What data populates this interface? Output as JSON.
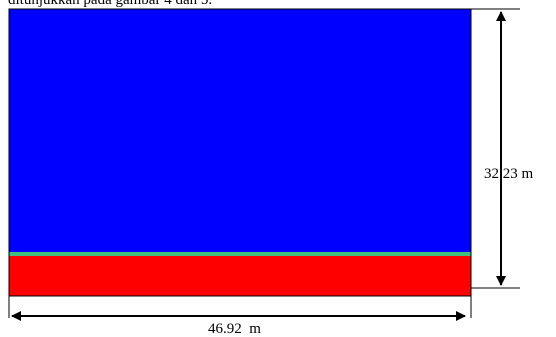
{
  "caption": "ditunjukkan pada gambar 4 dan 5.",
  "figure": {
    "height_label": "32.23 m",
    "width_label": "46.92  m",
    "layers": [
      {
        "name": "upper-region",
        "color": "#0000ff"
      },
      {
        "name": "interface-band",
        "color": "#40c080"
      },
      {
        "name": "lower-region",
        "color": "#ff0000"
      }
    ]
  }
}
